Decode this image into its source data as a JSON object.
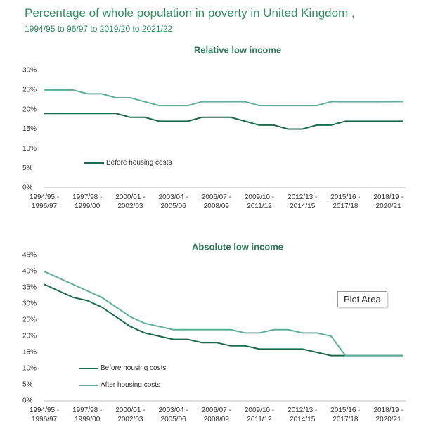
{
  "header": {
    "title": "Percentage of whole population in poverty in United Kingdom ,",
    "subtitle": "1994/95 to 96/97 to 2019/20 to 2021/22"
  },
  "tooltip": "Plot Area",
  "chart_data": [
    {
      "type": "line",
      "title": "Relative low income",
      "categories": [
        "1994/95 - 1996/97",
        null,
        null,
        "1997/98 - 1999/00",
        null,
        null,
        "2000/01 - 2002/03",
        null,
        null,
        "2003/04 - 2005/06",
        null,
        null,
        "2006/07 - 2008/09",
        null,
        null,
        "2009/10 - 2011/12",
        null,
        null,
        "2012/13 - 2014/15",
        null,
        null,
        "2015/16 - 2017/18",
        null,
        null,
        "2018/19 - 2020/21",
        null
      ],
      "series": [
        {
          "name": "Before housing costs",
          "color": "#1d6b4c",
          "values": [
            19,
            19,
            19,
            19,
            19,
            19,
            18,
            18,
            17,
            17,
            17,
            18,
            18,
            18,
            17,
            16,
            16,
            15,
            15,
            16,
            16,
            17,
            17,
            17,
            17,
            17
          ]
        },
        {
          "color": "#5fae9c",
          "values": [
            25,
            25,
            25,
            24,
            24,
            23,
            23,
            22,
            21,
            21,
            21,
            22,
            22,
            22,
            22,
            21,
            21,
            21,
            21,
            21,
            22,
            22,
            22,
            22,
            22,
            22
          ]
        }
      ],
      "ylim": [
        0,
        30
      ],
      "yticks": [
        {
          "value": 0,
          "label": "0%"
        },
        {
          "value": 5,
          "label": "5%"
        },
        {
          "value": 10,
          "label": "10%"
        },
        {
          "value": 15,
          "label": "15%"
        },
        {
          "value": 20,
          "label": "20%"
        },
        {
          "value": 25,
          "label": "25%"
        },
        {
          "value": 30,
          "label": "30%"
        }
      ],
      "grid": false
    },
    {
      "type": "line",
      "title": "Absolute low income",
      "categories": [
        "1994/95 - 1996/97",
        null,
        null,
        "1997/98 - 1999/00",
        null,
        null,
        "2000/01 - 2002/03",
        null,
        null,
        "2003/04 - 2005/06",
        null,
        null,
        "2006/07 - 2008/09",
        null,
        null,
        "2009/10 - 2011/12",
        null,
        null,
        "2012/13 - 2014/15",
        null,
        null,
        "2015/16 - 2017/18",
        null,
        null,
        "2018/19 - 2020/21",
        null
      ],
      "series": [
        {
          "name": "Before housing costs",
          "color": "#1d6b4c",
          "values": [
            36,
            34,
            32,
            31,
            29,
            26,
            23,
            21,
            20,
            19,
            19,
            18,
            18,
            17,
            17,
            16,
            16,
            16,
            16,
            15,
            14,
            14,
            14,
            14,
            14,
            14
          ]
        },
        {
          "name": "After housing costs",
          "color": "#5fae9c",
          "values": [
            40,
            38,
            36,
            34,
            32,
            29,
            26,
            24,
            23,
            22,
            22,
            22,
            22,
            22,
            21,
            21,
            22,
            22,
            21,
            21,
            20,
            14,
            14,
            14,
            14,
            14
          ]
        }
      ],
      "ylim": [
        0,
        45
      ],
      "yticks": [
        {
          "value": 0,
          "label": "0%"
        },
        {
          "value": 5,
          "label": "5%"
        },
        {
          "value": 10,
          "label": "10%"
        },
        {
          "value": 15,
          "label": "15%"
        },
        {
          "value": 20,
          "label": "20%"
        },
        {
          "value": 25,
          "label": "25%"
        },
        {
          "value": 30,
          "label": "30%"
        },
        {
          "value": 35,
          "label": "35%"
        },
        {
          "value": 40,
          "label": "40%"
        },
        {
          "value": 45,
          "label": "45%"
        }
      ],
      "grid": false
    }
  ]
}
